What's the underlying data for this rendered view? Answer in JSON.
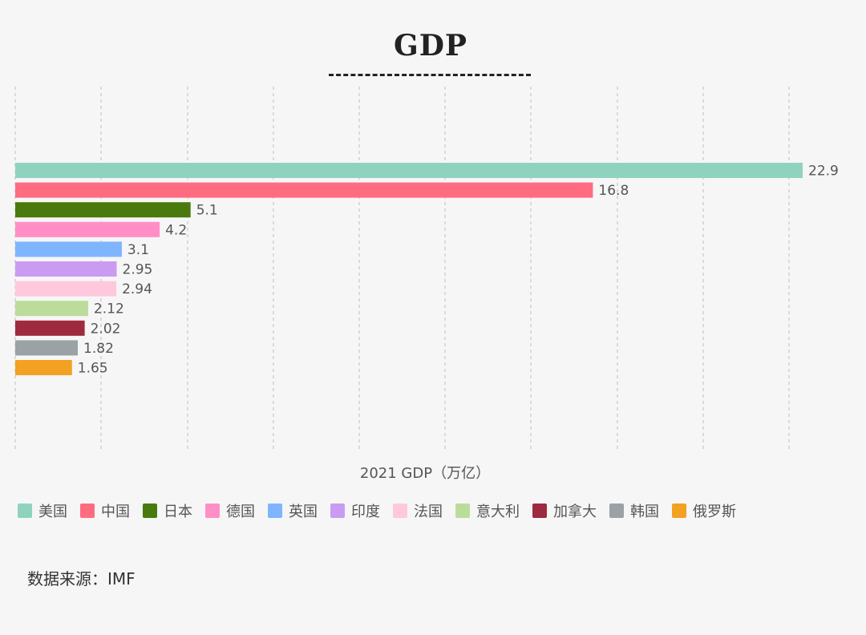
{
  "chart_data": {
    "type": "bar",
    "orientation": "horizontal",
    "title": "GDP",
    "xlabel": "2021 GDP（万亿）",
    "ylabel": "",
    "xlim": [
      0,
      22.9
    ],
    "grid": true,
    "legend_position": "bottom",
    "categories": [
      "美国",
      "中国",
      "日本",
      "德国",
      "英国",
      "印度",
      "法国",
      "意大利",
      "加拿大",
      "韩国",
      "俄罗斯"
    ],
    "values": [
      22.9,
      16.8,
      5.1,
      4.2,
      3.1,
      2.95,
      2.94,
      2.12,
      2.02,
      1.82,
      1.65
    ],
    "value_labels": [
      "22.9",
      "16.8",
      "5.1",
      "4.2",
      "3.1",
      "2.95",
      "2.94",
      "2.12",
      "2.02",
      "1.82",
      "1.65"
    ],
    "colors": [
      "#8fd3bf",
      "#ff6b81",
      "#4a7a0e",
      "#ff8ec6",
      "#7fb5ff",
      "#c99cf2",
      "#ffc8dc",
      "#bcdc9c",
      "#9e2a40",
      "#9aa2a6",
      "#f2a122"
    ]
  },
  "source": "数据来源：IMF"
}
